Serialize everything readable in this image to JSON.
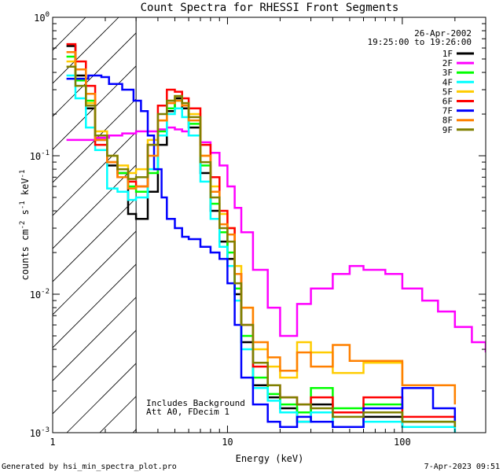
{
  "chart_data": {
    "type": "line",
    "title": "Count Spectra for RHESSI Front Segments",
    "xlabel": "Energy (keV)",
    "ylabel_parts": [
      "counts cm",
      "-2",
      " s",
      "-1",
      " keV",
      "-1"
    ],
    "xscale": "log",
    "yscale": "log",
    "xlim": [
      1,
      300
    ],
    "ylim": [
      0.001,
      1
    ],
    "x_ticks": [
      {
        "value": 1,
        "label": "1"
      },
      {
        "value": 10,
        "label": "10"
      },
      {
        "value": 100,
        "label": "100"
      }
    ],
    "y_ticks": [
      {
        "value": 1,
        "label_base": "10",
        "label_exp": "0"
      },
      {
        "value": 0.1,
        "label_base": "10",
        "label_exp": "-1"
      },
      {
        "value": 0.01,
        "label_base": "10",
        "label_exp": "-2"
      },
      {
        "value": 0.001,
        "label_base": "10",
        "label_exp": "-3"
      }
    ],
    "date": "26-Apr-2002",
    "time_range": "19:25:00 to 19:26:00",
    "annotations": [
      "Includes Background",
      "Att A0, FDecim 1"
    ],
    "attenuator_threshold_keV": 3,
    "legend_position": "top-right",
    "series": [
      {
        "name": "1F",
        "color": "#000000",
        "points": [
          [
            1.2,
            0.62
          ],
          [
            1.35,
            0.38
          ],
          [
            1.55,
            0.22
          ],
          [
            1.75,
            0.13
          ],
          [
            2.05,
            0.085
          ],
          [
            2.35,
            0.075
          ],
          [
            2.7,
            0.038
          ],
          [
            3.0,
            0.035
          ],
          [
            3.5,
            0.055
          ],
          [
            4.0,
            0.12
          ],
          [
            4.5,
            0.21
          ],
          [
            5.0,
            0.26
          ],
          [
            5.5,
            0.22
          ],
          [
            6.0,
            0.16
          ],
          [
            7.0,
            0.075
          ],
          [
            8.0,
            0.04
          ],
          [
            9.0,
            0.024
          ],
          [
            10.0,
            0.018
          ],
          [
            11.0,
            0.01
          ],
          [
            12.0,
            0.0045
          ],
          [
            14.0,
            0.0022
          ],
          [
            17.0,
            0.0018
          ],
          [
            20.0,
            0.0015
          ],
          [
            25.0,
            0.0012
          ],
          [
            30.0,
            0.0016
          ],
          [
            40.0,
            0.0011
          ],
          [
            60.0,
            0.0013
          ],
          [
            100.0,
            0.0011
          ],
          [
            200.0,
            0.001
          ]
        ]
      },
      {
        "name": "2F",
        "color": "#ff00ff",
        "points": [
          [
            1.2,
            0.13
          ],
          [
            1.5,
            0.13
          ],
          [
            1.8,
            0.135
          ],
          [
            2.1,
            0.14
          ],
          [
            2.5,
            0.145
          ],
          [
            3.0,
            0.15
          ],
          [
            3.5,
            0.15
          ],
          [
            4.0,
            0.155
          ],
          [
            4.5,
            0.16
          ],
          [
            5.0,
            0.155
          ],
          [
            5.5,
            0.15
          ],
          [
            6.0,
            0.14
          ],
          [
            7.0,
            0.125
          ],
          [
            8.0,
            0.105
          ],
          [
            9.0,
            0.085
          ],
          [
            10.0,
            0.06
          ],
          [
            11.0,
            0.042
          ],
          [
            12.0,
            0.028
          ],
          [
            14.0,
            0.015
          ],
          [
            17.0,
            0.008
          ],
          [
            20.0,
            0.005
          ],
          [
            25.0,
            0.0085
          ],
          [
            30.0,
            0.011
          ],
          [
            40.0,
            0.014
          ],
          [
            50.0,
            0.016
          ],
          [
            60.0,
            0.015
          ],
          [
            80.0,
            0.014
          ],
          [
            100.0,
            0.011
          ],
          [
            130.0,
            0.009
          ],
          [
            160.0,
            0.0075
          ],
          [
            200.0,
            0.0058
          ],
          [
            250.0,
            0.0045
          ],
          [
            300.0,
            0.0038
          ]
        ]
      },
      {
        "name": "3F",
        "color": "#00ff00",
        "points": [
          [
            1.2,
            0.52
          ],
          [
            1.35,
            0.35
          ],
          [
            1.55,
            0.25
          ],
          [
            1.75,
            0.14
          ],
          [
            2.05,
            0.09
          ],
          [
            2.35,
            0.075
          ],
          [
            2.7,
            0.06
          ],
          [
            3.0,
            0.055
          ],
          [
            3.5,
            0.075
          ],
          [
            4.0,
            0.15
          ],
          [
            4.5,
            0.22
          ],
          [
            5.0,
            0.25
          ],
          [
            5.5,
            0.23
          ],
          [
            6.0,
            0.17
          ],
          [
            7.0,
            0.085
          ],
          [
            8.0,
            0.045
          ],
          [
            9.0,
            0.028
          ],
          [
            10.0,
            0.02
          ],
          [
            11.0,
            0.011
          ],
          [
            12.0,
            0.005
          ],
          [
            14.0,
            0.0025
          ],
          [
            17.0,
            0.0019
          ],
          [
            20.0,
            0.0016
          ],
          [
            25.0,
            0.0014
          ],
          [
            30.0,
            0.0021
          ],
          [
            40.0,
            0.0015
          ],
          [
            60.0,
            0.0016
          ],
          [
            100.0,
            0.0012
          ],
          [
            200.0,
            0.0011
          ]
        ]
      },
      {
        "name": "4F",
        "color": "#00ffff",
        "points": [
          [
            1.2,
            0.38
          ],
          [
            1.35,
            0.26
          ],
          [
            1.55,
            0.16
          ],
          [
            1.75,
            0.11
          ],
          [
            2.05,
            0.058
          ],
          [
            2.35,
            0.055
          ],
          [
            2.7,
            0.048
          ],
          [
            3.0,
            0.05
          ],
          [
            3.5,
            0.08
          ],
          [
            4.0,
            0.14
          ],
          [
            4.5,
            0.2
          ],
          [
            5.0,
            0.22
          ],
          [
            5.5,
            0.19
          ],
          [
            6.0,
            0.14
          ],
          [
            7.0,
            0.065
          ],
          [
            8.0,
            0.035
          ],
          [
            9.0,
            0.022
          ],
          [
            10.0,
            0.016
          ],
          [
            11.0,
            0.009
          ],
          [
            12.0,
            0.004
          ],
          [
            14.0,
            0.0021
          ],
          [
            17.0,
            0.0017
          ],
          [
            20.0,
            0.0014
          ],
          [
            25.0,
            0.0012
          ],
          [
            30.0,
            0.0014
          ],
          [
            40.0,
            0.0011
          ],
          [
            60.0,
            0.0012
          ],
          [
            100.0,
            0.0011
          ],
          [
            200.0,
            0.001
          ]
        ]
      },
      {
        "name": "5F",
        "color": "#ffcc00",
        "points": [
          [
            1.2,
            0.48
          ],
          [
            1.35,
            0.36
          ],
          [
            1.55,
            0.24
          ],
          [
            1.75,
            0.15
          ],
          [
            2.05,
            0.1
          ],
          [
            2.35,
            0.085
          ],
          [
            2.7,
            0.075
          ],
          [
            3.0,
            0.08
          ],
          [
            3.5,
            0.13
          ],
          [
            4.0,
            0.18
          ],
          [
            4.5,
            0.25
          ],
          [
            5.0,
            0.27
          ],
          [
            5.5,
            0.24
          ],
          [
            6.0,
            0.2
          ],
          [
            7.0,
            0.1
          ],
          [
            8.0,
            0.06
          ],
          [
            9.0,
            0.038
          ],
          [
            10.0,
            0.03
          ],
          [
            11.0,
            0.016
          ],
          [
            12.0,
            0.008
          ],
          [
            14.0,
            0.004
          ],
          [
            17.0,
            0.003
          ],
          [
            20.0,
            0.0025
          ],
          [
            25.0,
            0.0045
          ],
          [
            30.0,
            0.0038
          ],
          [
            40.0,
            0.0027
          ],
          [
            60.0,
            0.0032
          ],
          [
            100.0,
            0.0022
          ],
          [
            200.0,
            0.0018
          ]
        ]
      },
      {
        "name": "6F",
        "color": "#ff0000",
        "points": [
          [
            1.2,
            0.64
          ],
          [
            1.35,
            0.48
          ],
          [
            1.55,
            0.32
          ],
          [
            1.75,
            0.12
          ],
          [
            2.05,
            0.09
          ],
          [
            2.35,
            0.07
          ],
          [
            2.7,
            0.065
          ],
          [
            3.0,
            0.06
          ],
          [
            3.5,
            0.12
          ],
          [
            4.0,
            0.23
          ],
          [
            4.5,
            0.3
          ],
          [
            5.0,
            0.29
          ],
          [
            5.5,
            0.26
          ],
          [
            6.0,
            0.22
          ],
          [
            7.0,
            0.12
          ],
          [
            8.0,
            0.07
          ],
          [
            9.0,
            0.04
          ],
          [
            10.0,
            0.03
          ],
          [
            11.0,
            0.014
          ],
          [
            12.0,
            0.006
          ],
          [
            14.0,
            0.003
          ],
          [
            17.0,
            0.0022
          ],
          [
            20.0,
            0.0018
          ],
          [
            25.0,
            0.0016
          ],
          [
            30.0,
            0.0018
          ],
          [
            40.0,
            0.0014
          ],
          [
            60.0,
            0.0018
          ],
          [
            100.0,
            0.0013
          ],
          [
            200.0,
            0.0012
          ]
        ]
      },
      {
        "name": "7F",
        "color": "#0000ff",
        "points": [
          [
            1.2,
            0.36
          ],
          [
            1.6,
            0.38
          ],
          [
            1.9,
            0.37
          ],
          [
            2.1,
            0.33
          ],
          [
            2.5,
            0.3
          ],
          [
            2.9,
            0.25
          ],
          [
            3.2,
            0.21
          ],
          [
            3.5,
            0.14
          ],
          [
            3.8,
            0.08
          ],
          [
            4.2,
            0.05
          ],
          [
            4.5,
            0.035
          ],
          [
            5.0,
            0.03
          ],
          [
            5.5,
            0.026
          ],
          [
            6.0,
            0.025
          ],
          [
            7.0,
            0.022
          ],
          [
            8.0,
            0.02
          ],
          [
            9.0,
            0.018
          ],
          [
            10.0,
            0.012
          ],
          [
            11.0,
            0.006
          ],
          [
            12.0,
            0.0025
          ],
          [
            14.0,
            0.0016
          ],
          [
            17.0,
            0.0012
          ],
          [
            20.0,
            0.0011
          ],
          [
            25.0,
            0.0013
          ],
          [
            30.0,
            0.0012
          ],
          [
            40.0,
            0.0011
          ],
          [
            60.0,
            0.0015
          ],
          [
            100.0,
            0.0021
          ],
          [
            150.0,
            0.0015
          ],
          [
            200.0,
            0.0011
          ]
        ]
      },
      {
        "name": "8F",
        "color": "#ff8000",
        "points": [
          [
            1.2,
            0.56
          ],
          [
            1.35,
            0.42
          ],
          [
            1.55,
            0.28
          ],
          [
            1.75,
            0.13
          ],
          [
            2.05,
            0.09
          ],
          [
            2.35,
            0.07
          ],
          [
            2.7,
            0.058
          ],
          [
            3.0,
            0.06
          ],
          [
            3.5,
            0.1
          ],
          [
            4.0,
            0.18
          ],
          [
            4.5,
            0.24
          ],
          [
            5.0,
            0.25
          ],
          [
            5.5,
            0.23
          ],
          [
            6.0,
            0.18
          ],
          [
            7.0,
            0.1
          ],
          [
            8.0,
            0.055
          ],
          [
            9.0,
            0.032
          ],
          [
            10.0,
            0.027
          ],
          [
            11.0,
            0.014
          ],
          [
            12.0,
            0.008
          ],
          [
            14.0,
            0.0045
          ],
          [
            17.0,
            0.0035
          ],
          [
            20.0,
            0.0028
          ],
          [
            25.0,
            0.0038
          ],
          [
            30.0,
            0.003
          ],
          [
            40.0,
            0.0043
          ],
          [
            50.0,
            0.0033
          ],
          [
            60.0,
            0.0033
          ],
          [
            100.0,
            0.0022
          ],
          [
            200.0,
            0.0016
          ]
        ]
      },
      {
        "name": "9F",
        "color": "#808000",
        "points": [
          [
            1.2,
            0.44
          ],
          [
            1.35,
            0.32
          ],
          [
            1.55,
            0.23
          ],
          [
            1.75,
            0.14
          ],
          [
            2.05,
            0.1
          ],
          [
            2.35,
            0.08
          ],
          [
            2.7,
            0.068
          ],
          [
            3.0,
            0.07
          ],
          [
            3.5,
            0.12
          ],
          [
            4.0,
            0.2
          ],
          [
            4.5,
            0.25
          ],
          [
            5.0,
            0.27
          ],
          [
            5.5,
            0.24
          ],
          [
            6.0,
            0.19
          ],
          [
            7.0,
            0.09
          ],
          [
            8.0,
            0.05
          ],
          [
            9.0,
            0.03
          ],
          [
            10.0,
            0.024
          ],
          [
            11.0,
            0.012
          ],
          [
            12.0,
            0.006
          ],
          [
            14.0,
            0.0032
          ],
          [
            17.0,
            0.0022
          ],
          [
            20.0,
            0.0018
          ],
          [
            25.0,
            0.0016
          ],
          [
            30.0,
            0.0015
          ],
          [
            40.0,
            0.0013
          ],
          [
            60.0,
            0.0014
          ],
          [
            100.0,
            0.0012
          ],
          [
            200.0,
            0.0011
          ]
        ]
      }
    ]
  },
  "footer": {
    "generated_by": "Generated by hsi_min_spectra_plot.pro",
    "timestamp": "7-Apr-2023 09:51"
  }
}
